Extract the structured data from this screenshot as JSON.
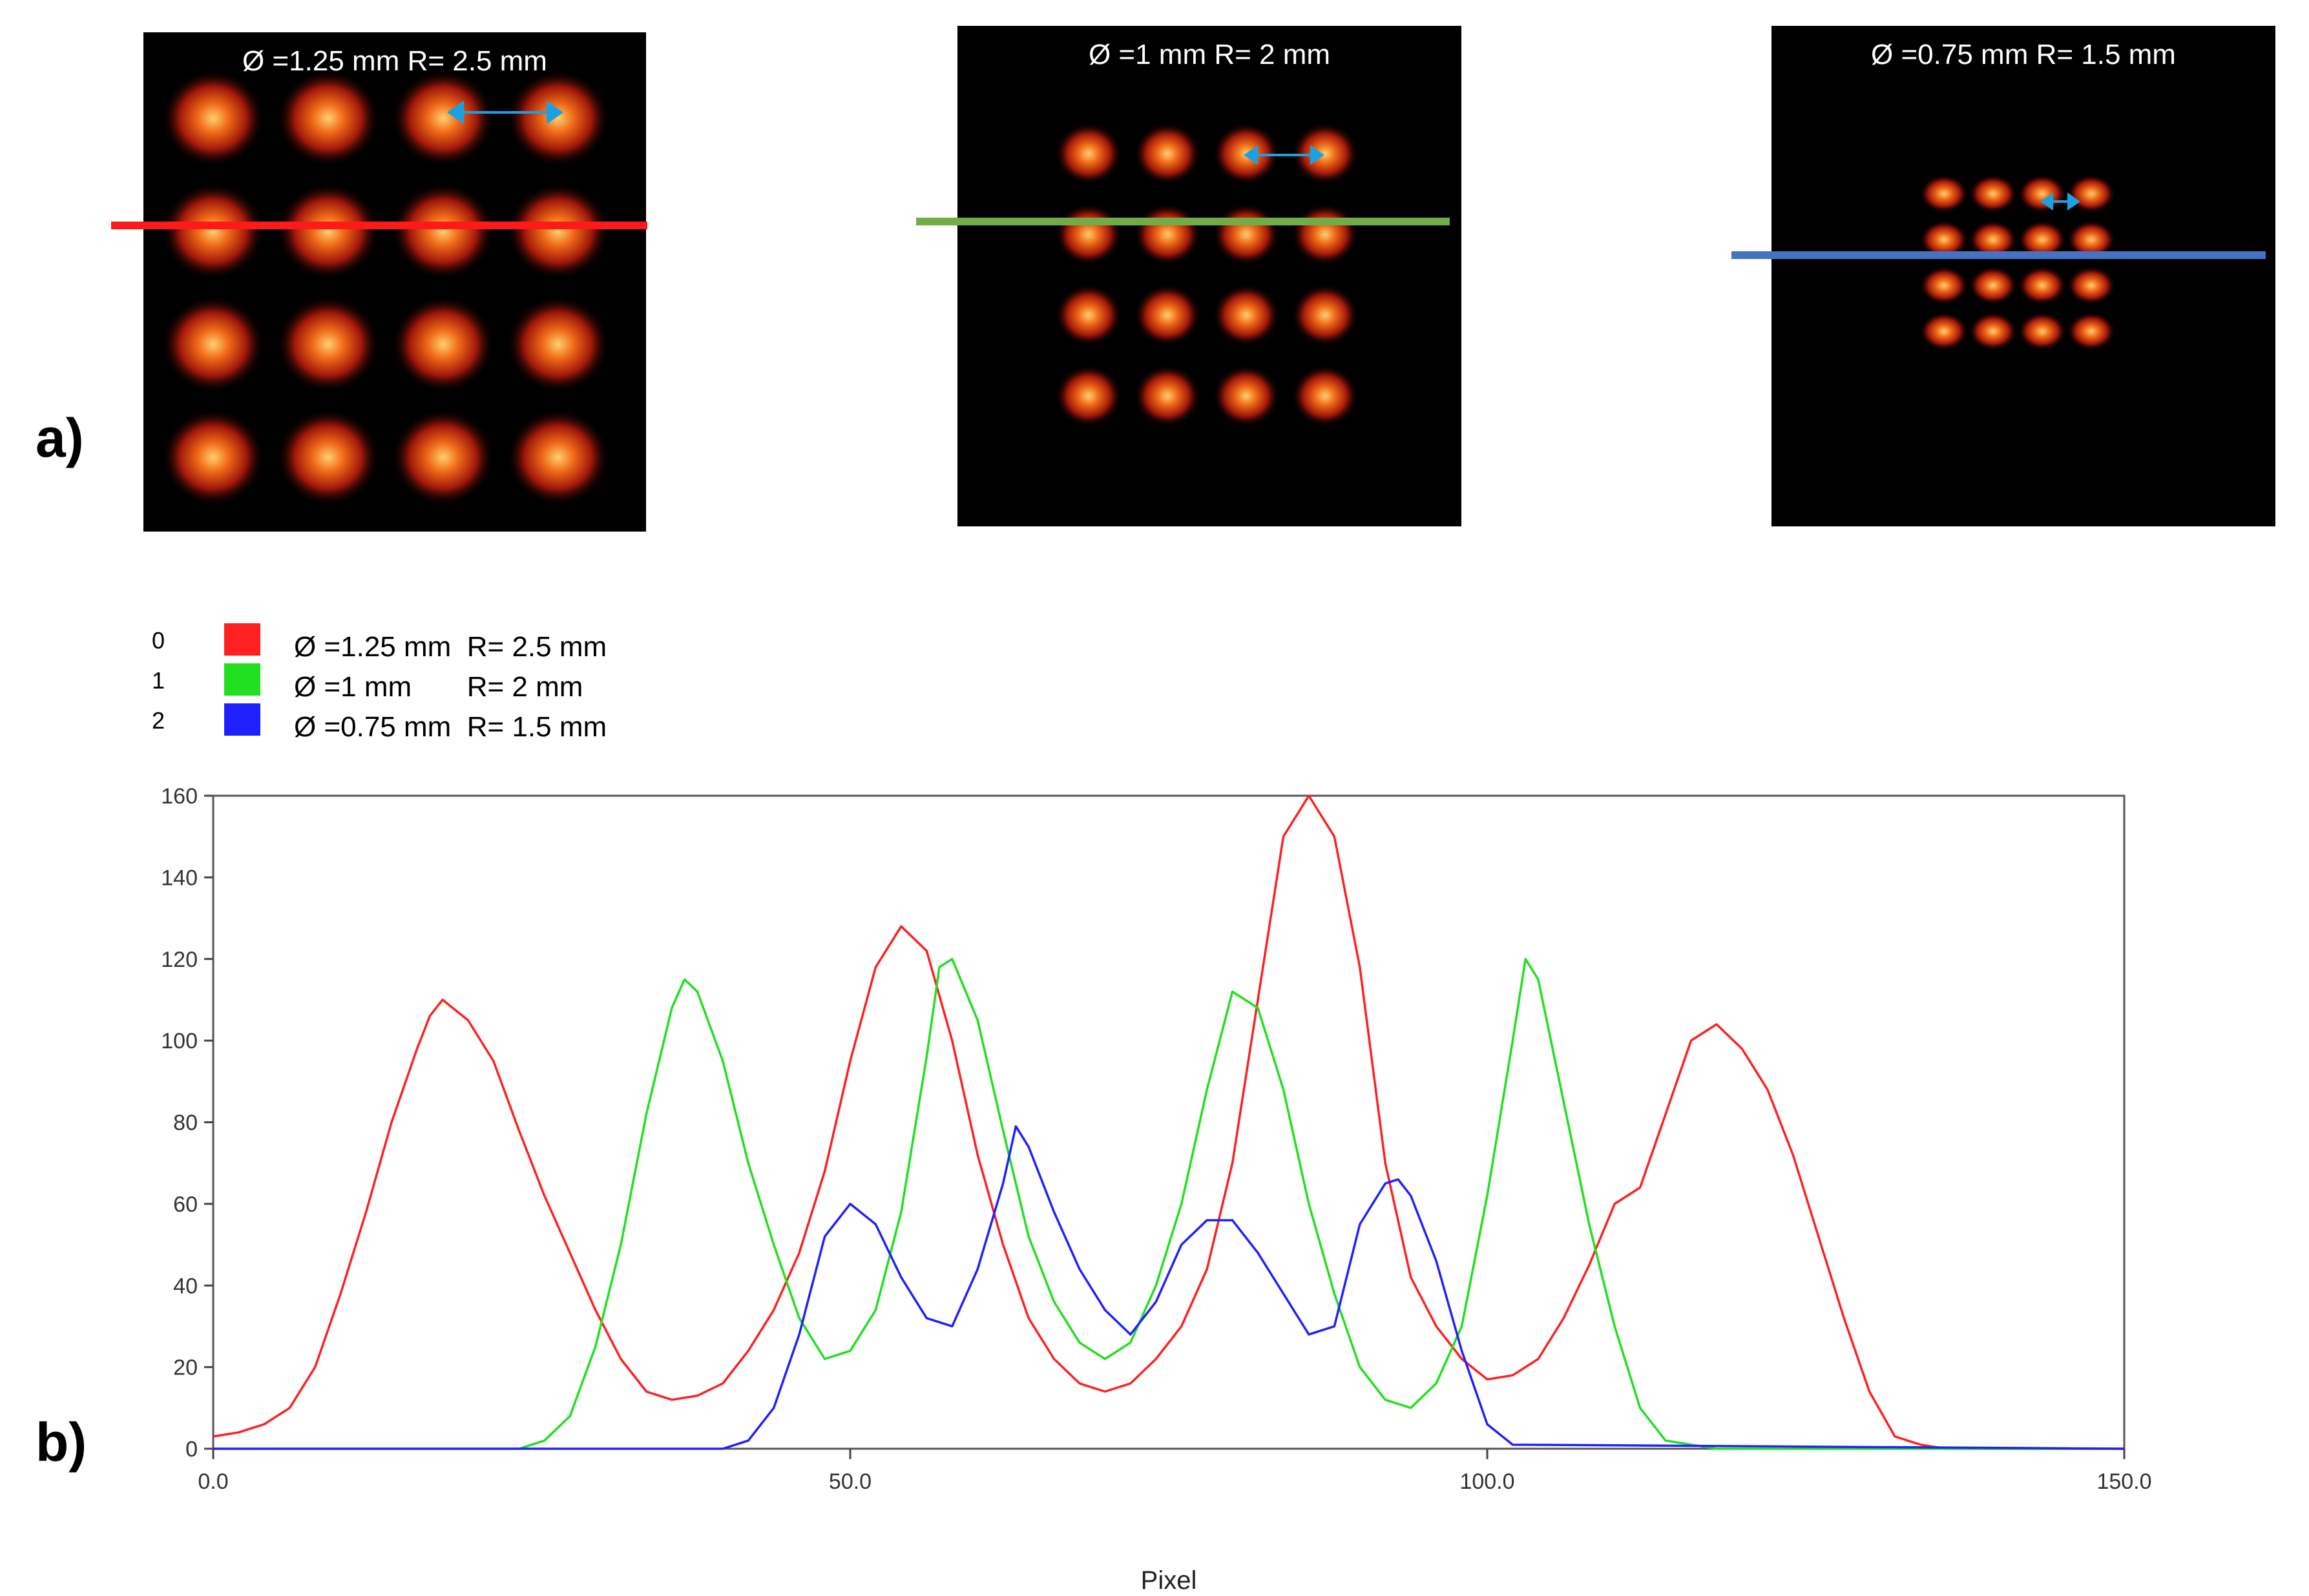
{
  "panel_a_label": "a)",
  "panel_b_label": "b)",
  "images": [
    {
      "caption": "Ø =1.25 mm  R= 2.5 mm",
      "line_color": "#ff1a1a"
    },
    {
      "caption": "Ø =1 mm  R= 2 mm",
      "line_color": "#70ad47"
    },
    {
      "caption": "Ø =0.75 mm  R= 1.5 mm",
      "line_color": "#4472c4"
    }
  ],
  "arrow_color": "#1ba1e2",
  "legend": [
    {
      "index": "0",
      "label": "Ø =1.25 mm  R= 2.5 mm",
      "color": "#ff2020"
    },
    {
      "index": "1",
      "label": "Ø =1 mm       R= 2 mm",
      "color": "#20e020"
    },
    {
      "index": "2",
      "label": "Ø =0.75 mm  R= 1.5 mm",
      "color": "#2020ff"
    }
  ],
  "chart_data": {
    "type": "line",
    "xlabel": "Pixel",
    "ylabel": "",
    "xlim": [
      0,
      150
    ],
    "ylim": [
      0,
      160
    ],
    "x_ticks": [
      "0.0",
      "50.0",
      "100.0",
      "150.0"
    ],
    "y_ticks": [
      "0",
      "20",
      "40",
      "60",
      "80",
      "100",
      "120",
      "140",
      "160"
    ],
    "grid": false,
    "series": [
      {
        "name": "Ø =1.25 mm  R= 2.5 mm",
        "color": "#ff2020",
        "x": [
          0,
          2,
          4,
          6,
          8,
          10,
          12,
          14,
          16,
          17,
          18,
          20,
          22,
          24,
          26,
          28,
          30,
          32,
          34,
          36,
          38,
          40,
          42,
          44,
          46,
          48,
          50,
          52,
          54,
          56,
          58,
          60,
          62,
          64,
          66,
          68,
          70,
          72,
          74,
          76,
          78,
          80,
          82,
          84,
          86,
          88,
          90,
          92,
          94,
          96,
          98,
          100,
          102,
          104,
          106,
          108,
          110,
          112,
          114,
          116,
          118,
          120,
          122,
          124,
          126,
          128,
          130,
          132,
          134,
          136,
          140,
          145,
          150
        ],
        "y": [
          3,
          4,
          6,
          10,
          20,
          38,
          58,
          80,
          98,
          106,
          110,
          105,
          95,
          78,
          62,
          48,
          34,
          22,
          14,
          12,
          13,
          16,
          24,
          34,
          48,
          68,
          95,
          118,
          128,
          122,
          100,
          72,
          50,
          32,
          22,
          16,
          14,
          16,
          22,
          30,
          44,
          70,
          110,
          150,
          160,
          150,
          118,
          70,
          42,
          30,
          22,
          17,
          18,
          22,
          32,
          45,
          60,
          64,
          82,
          100,
          104,
          98,
          88,
          72,
          52,
          32,
          14,
          3,
          1,
          0,
          0,
          0,
          0
        ]
      },
      {
        "name": "Ø =1 mm       R= 2 mm",
        "color": "#20e020",
        "x": [
          0,
          22,
          24,
          26,
          28,
          30,
          32,
          34,
          36,
          37,
          38,
          40,
          42,
          44,
          46,
          48,
          50,
          52,
          54,
          56,
          57,
          58,
          60,
          62,
          64,
          66,
          68,
          70,
          72,
          74,
          76,
          78,
          80,
          82,
          84,
          86,
          88,
          90,
          92,
          94,
          96,
          98,
          100,
          102,
          103,
          104,
          106,
          108,
          110,
          112,
          114,
          116,
          118,
          150
        ],
        "y": [
          0,
          0,
          0,
          2,
          8,
          25,
          50,
          82,
          108,
          115,
          112,
          95,
          70,
          50,
          32,
          22,
          24,
          34,
          58,
          96,
          118,
          120,
          105,
          78,
          52,
          36,
          26,
          22,
          26,
          40,
          60,
          88,
          112,
          108,
          88,
          60,
          38,
          20,
          12,
          10,
          16,
          30,
          62,
          100,
          120,
          115,
          85,
          55,
          30,
          10,
          2,
          1,
          0,
          0
        ]
      },
      {
        "name": "Ø =0.75 mm  R= 1.5 mm",
        "color": "#2020ff",
        "x": [
          0,
          38,
          40,
          42,
          44,
          46,
          48,
          50,
          52,
          54,
          56,
          58,
          60,
          62,
          63,
          64,
          66,
          68,
          70,
          72,
          74,
          76,
          78,
          80,
          82,
          84,
          86,
          88,
          90,
          92,
          93,
          94,
          96,
          98,
          100,
          102,
          150
        ],
        "y": [
          0,
          0,
          0,
          2,
          10,
          28,
          52,
          60,
          55,
          42,
          32,
          30,
          44,
          65,
          79,
          74,
          58,
          44,
          34,
          28,
          36,
          50,
          56,
          56,
          48,
          38,
          28,
          30,
          55,
          65,
          66,
          62,
          46,
          24,
          6,
          1,
          0
        ]
      }
    ]
  }
}
